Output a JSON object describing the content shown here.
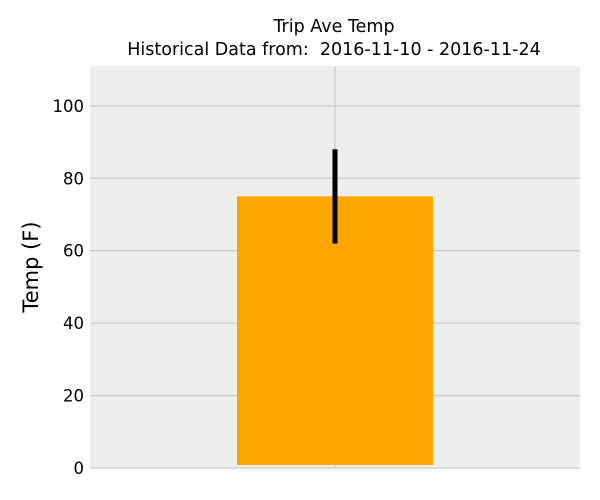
{
  "chart_data": {
    "type": "bar",
    "title": "Trip Ave Temp",
    "subtitle": "Historical Data from:  2016-11-10 - 2016-11-24",
    "xlabel": "",
    "ylabel": "Temp (F)",
    "ylim": [
      0,
      111
    ],
    "yticks": [
      0,
      20,
      40,
      60,
      80,
      100
    ],
    "grid": true,
    "categories": [
      ""
    ],
    "values": [
      75
    ],
    "error_low": [
      62
    ],
    "error_high": [
      88
    ],
    "colors": {
      "bar": "#FFA500",
      "error_bar": "#000000",
      "plot_background": "#EEEEEE",
      "grid": "#CBCBCB"
    }
  }
}
